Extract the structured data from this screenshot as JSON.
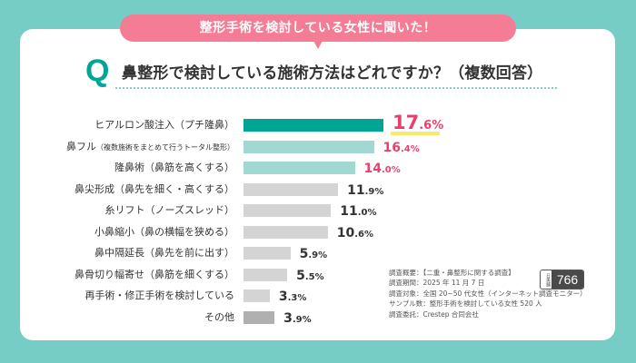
{
  "banner": "整形手術を検討している女性に聞いた！",
  "question": {
    "mark": "Q",
    "title": "鼻整形で検討している施術方法はどれですか？（複数回答）"
  },
  "colors": {
    "background": "#76cdc6",
    "banner": "#f47c94",
    "accent": "#00a596",
    "top_bar": "#00a596",
    "highlight_bar": "#a2d8d2",
    "gray_bar": "#d4d4d4",
    "other_bar": "#b0b0b0",
    "highlight_value": "#e8406e",
    "normal_value": "#333333",
    "underline": "#f8e96a"
  },
  "chart_data": {
    "type": "bar",
    "orientation": "horizontal",
    "title": "鼻整形で検討している施術方法はどれですか？（複数回答）",
    "unit": "%",
    "categories": [
      {
        "main": "ヒアルロン酸注入（プチ隆鼻）",
        "sub": ""
      },
      {
        "main": "鼻フル",
        "sub": "（複数施術をまとめて行うトータル整形）"
      },
      {
        "main": "隆鼻術（鼻筋を高くする）",
        "sub": ""
      },
      {
        "main": "鼻尖形成（鼻先を細く・高くする）",
        "sub": ""
      },
      {
        "main": "糸リフト（ノーズスレッド）",
        "sub": ""
      },
      {
        "main": "小鼻縮小（鼻の横幅を狭める）",
        "sub": ""
      },
      {
        "main": "鼻中隔延長（鼻先を前に出す）",
        "sub": ""
      },
      {
        "main": "鼻骨切り幅寄せ（鼻筋を細くする）",
        "sub": ""
      },
      {
        "main": "再手術・修正手術を検討している",
        "sub": ""
      },
      {
        "main": "その他",
        "sub": ""
      }
    ],
    "values": [
      17.6,
      16.4,
      14.0,
      11.9,
      11.0,
      10.6,
      5.9,
      5.5,
      3.3,
      3.9
    ],
    "value_labels": [
      {
        "int": "17",
        "dec": ".6%"
      },
      {
        "int": "16",
        "dec": ".4%"
      },
      {
        "int": "14",
        "dec": ".0%"
      },
      {
        "int": "11",
        "dec": ".9%"
      },
      {
        "int": "11",
        "dec": ".0%"
      },
      {
        "int": "10",
        "dec": ".6%"
      },
      {
        "int": "5",
        "dec": ".9%"
      },
      {
        "int": "5",
        "dec": ".5%"
      },
      {
        "int": "3",
        "dec": ".3%"
      },
      {
        "int": "3",
        "dec": ".9%"
      }
    ],
    "styles": [
      "top",
      "highlight",
      "highlight",
      "normal",
      "normal",
      "normal",
      "normal",
      "normal",
      "normal",
      "other"
    ],
    "xlim": [
      0,
      20
    ]
  },
  "survey_info": [
    "調査概要：【二重・鼻整形に関する調査】",
    "調査期間：2025 年 11 月 7 日",
    "調査対象：全国 20~50 代女性（インターネット調査モニター）",
    "サンプル数：整形手術を検討している女性 520 人",
    "調査委託：Crestep 合同会社"
  ],
  "badge": {
    "side_label": "日美舗",
    "number": "766"
  }
}
